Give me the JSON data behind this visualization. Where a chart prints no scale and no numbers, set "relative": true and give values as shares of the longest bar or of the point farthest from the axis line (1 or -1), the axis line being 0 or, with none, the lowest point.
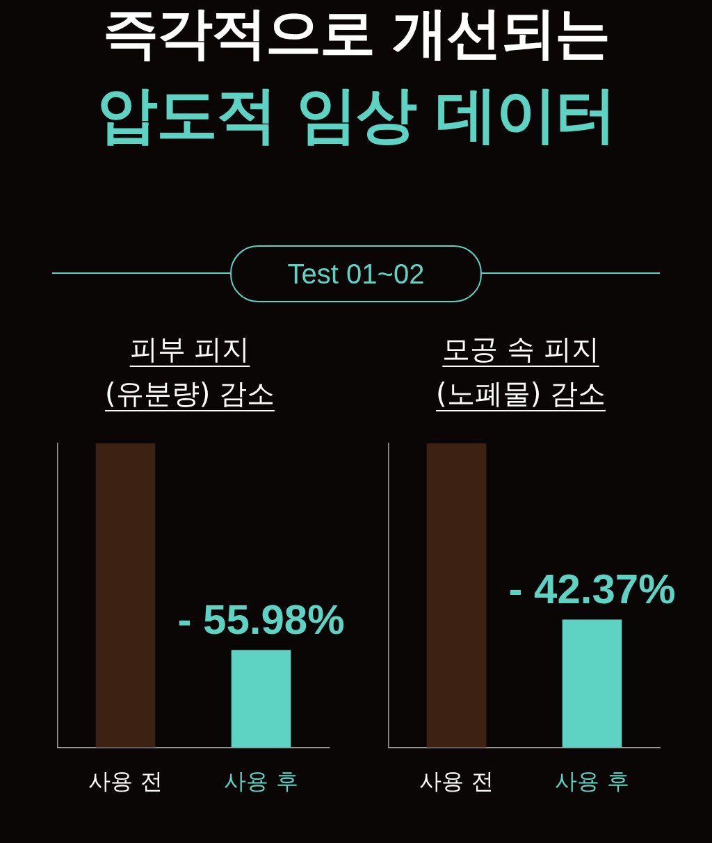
{
  "chart_data": [
    {
      "type": "other",
      "title": "즉각적으로 개선되는",
      "subtitle": "압도적 임상 데이터",
      "annotations": [
        "Test 01~02"
      ]
    },
    {
      "type": "bar",
      "title": "피부 피지\n(유분량) 감소",
      "categories": [
        "사용 전",
        "사용 후"
      ],
      "values": [
        1,
        0.32
      ],
      "colors": [
        "#3d2214",
        "#5fd3c3"
      ],
      "relative": true,
      "annotations": [
        "- 55.98%"
      ]
    },
    {
      "type": "bar",
      "title": "모공 속 피지\n(노폐물) 감소",
      "categories": [
        "사용 전",
        "사용 후"
      ],
      "values": [
        1,
        0.42
      ],
      "colors": [
        "#3d2214",
        "#5fd3c3"
      ],
      "relative": true,
      "annotations": [
        "- 42.37%"
      ]
    }
  ]
}
